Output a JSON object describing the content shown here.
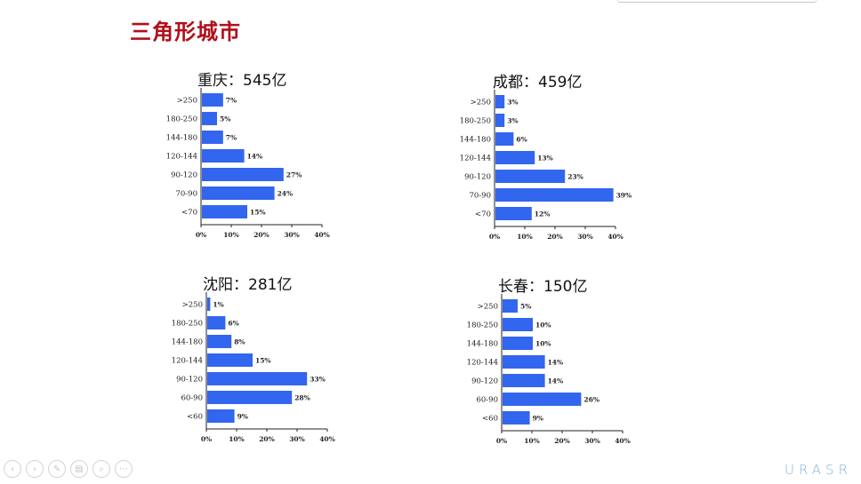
{
  "slide": {
    "title": "三角形城市"
  },
  "colors": {
    "title": "#b0101a",
    "bar": "#3366ee"
  },
  "chart_data": [
    {
      "type": "bar",
      "orientation": "horizontal",
      "title": "重庆：545亿",
      "categories": [
        ">250",
        "180-250",
        "144-180",
        "120-144",
        "90-120",
        "70-90",
        "<70"
      ],
      "values": [
        7,
        5,
        7,
        14,
        27,
        24,
        15
      ],
      "value_labels": [
        "7%",
        "5%",
        "7%",
        "14%",
        "27%",
        "24%",
        "15%"
      ],
      "xlim": [
        0,
        40
      ],
      "xticks": [
        "0%",
        "10%",
        "20%",
        "30%",
        "40%"
      ],
      "grid": false
    },
    {
      "type": "bar",
      "orientation": "horizontal",
      "title": "成都：459亿",
      "categories": [
        ">250",
        "180-250",
        "144-180",
        "120-144",
        "90-120",
        "70-90",
        "<70"
      ],
      "values": [
        3,
        3,
        6,
        13,
        23,
        39,
        12
      ],
      "value_labels": [
        "3%",
        "3%",
        "6%",
        "13%",
        "23%",
        "39%",
        "12%"
      ],
      "xlim": [
        0,
        40
      ],
      "xticks": [
        "0%",
        "10%",
        "20%",
        "30%",
        "40%"
      ],
      "grid": false
    },
    {
      "type": "bar",
      "orientation": "horizontal",
      "title": "沈阳：281亿",
      "categories": [
        ">250",
        "180-250",
        "144-180",
        "120-144",
        "90-120",
        "60-90",
        "<60"
      ],
      "values": [
        1,
        6,
        8,
        15,
        33,
        28,
        9
      ],
      "value_labels": [
        "1%",
        "6%",
        "8%",
        "15%",
        "33%",
        "28%",
        "9%"
      ],
      "xlim": [
        0,
        40
      ],
      "xticks": [
        "0%",
        "10%",
        "20%",
        "30%",
        "40%"
      ],
      "grid": false
    },
    {
      "type": "bar",
      "orientation": "horizontal",
      "title": "长春：150亿",
      "categories": [
        ">250",
        "180-250",
        "144-180",
        "120-144",
        "90-120",
        "60-90",
        "<60"
      ],
      "values": [
        5,
        10,
        10,
        14,
        14,
        26,
        9
      ],
      "value_labels": [
        "5%",
        "10%",
        "10%",
        "14%",
        "14%",
        "26%",
        "9%"
      ],
      "xlim": [
        0,
        40
      ],
      "xticks": [
        "0%",
        "10%",
        "20%",
        "30%",
        "40%"
      ],
      "grid": false
    }
  ],
  "player": {
    "buttons": [
      {
        "name": "prev-button",
        "icon": "chevron-left-icon",
        "glyph": "‹"
      },
      {
        "name": "next-button",
        "icon": "chevron-right-icon",
        "glyph": "›"
      },
      {
        "name": "pen-button",
        "icon": "pen-icon",
        "glyph": "✎"
      },
      {
        "name": "slides-button",
        "icon": "slides-icon",
        "glyph": "▤"
      },
      {
        "name": "zoom-button",
        "icon": "magnifier-icon",
        "glyph": "⌕"
      },
      {
        "name": "more-button",
        "icon": "more-icon",
        "glyph": "⋯"
      }
    ]
  },
  "logo": {
    "text": "URASR"
  }
}
